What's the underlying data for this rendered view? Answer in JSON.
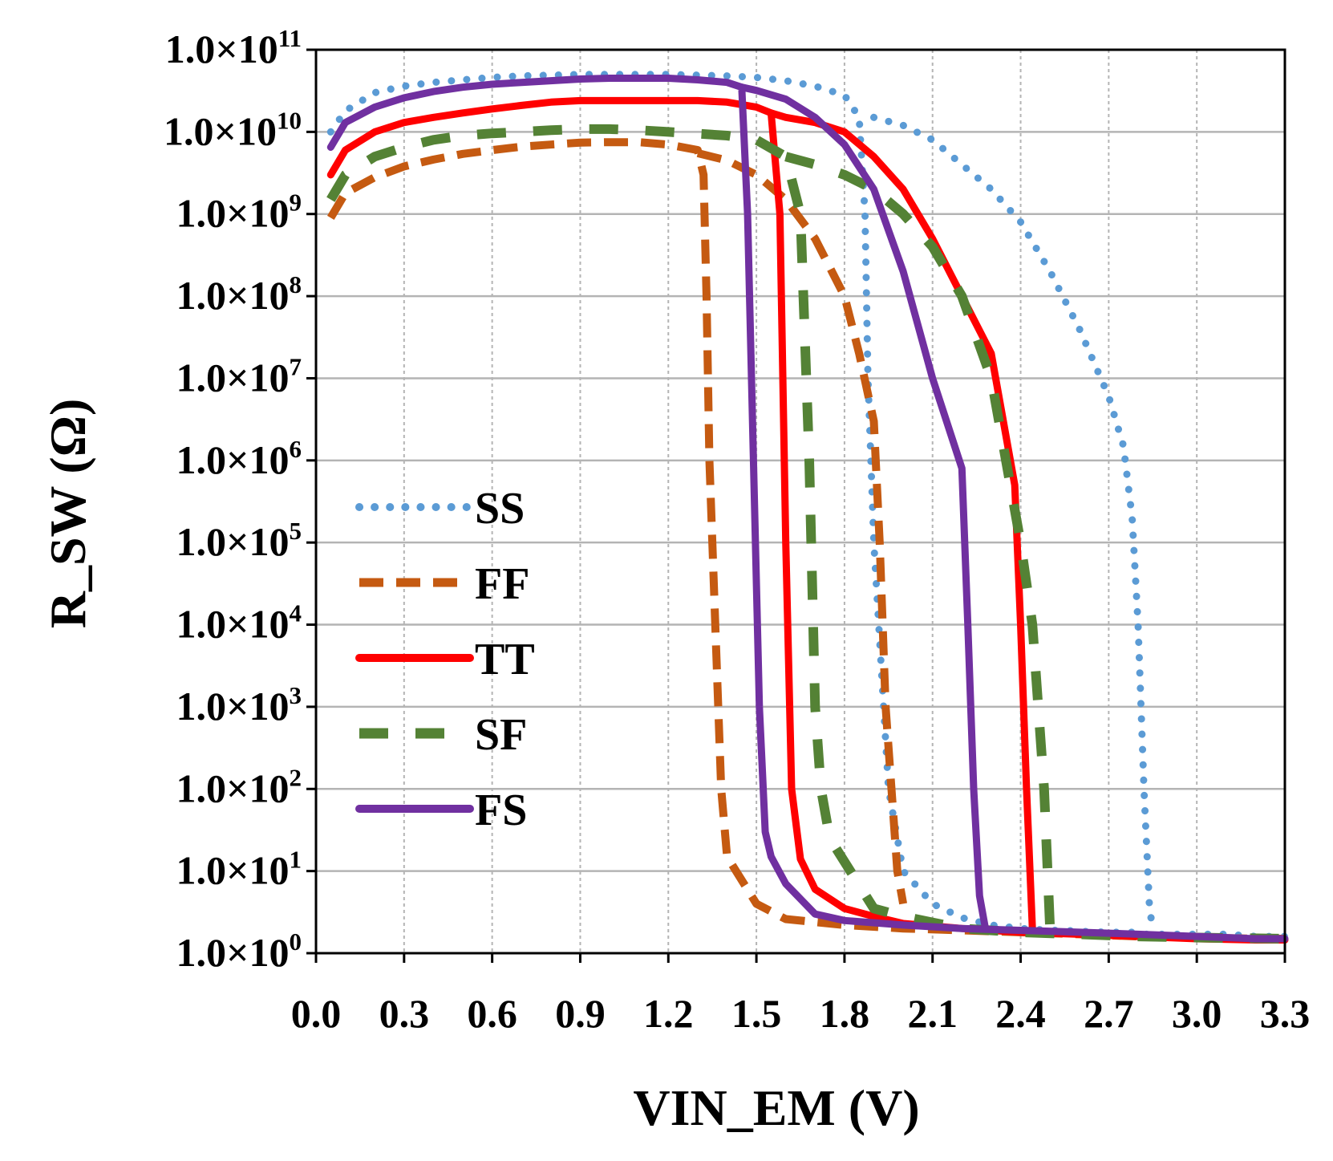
{
  "chart_data": {
    "type": "line",
    "title": "",
    "xlabel": "VIN_EM (V)",
    "ylabel": "R_SW (Ω)",
    "xlim": [
      0,
      3.3
    ],
    "ylim_log10": [
      0,
      11
    ],
    "yscale": "log",
    "x_ticks": [
      "0.0",
      "0.3",
      "0.6",
      "0.9",
      "1.2",
      "1.5",
      "1.8",
      "2.1",
      "2.4",
      "2.7",
      "3.0",
      "3.3"
    ],
    "x_tick_values": [
      0,
      0.3,
      0.6,
      0.9,
      1.2,
      1.5,
      1.8,
      2.1,
      2.4,
      2.7,
      3.0,
      3.3
    ],
    "y_ticks": [
      {
        "mant": "1.0×10",
        "exp": "0",
        "value": 1
      },
      {
        "mant": "1.0×10",
        "exp": "1",
        "value": 10
      },
      {
        "mant": "1.0×10",
        "exp": "2",
        "value": 100
      },
      {
        "mant": "1.0×10",
        "exp": "3",
        "value": 1000
      },
      {
        "mant": "1.0×10",
        "exp": "4",
        "value": 10000
      },
      {
        "mant": "1.0×10",
        "exp": "5",
        "value": 100000
      },
      {
        "mant": "1.0×10",
        "exp": "6",
        "value": 1000000
      },
      {
        "mant": "1.0×10",
        "exp": "7",
        "value": 10000000
      },
      {
        "mant": "1.0×10",
        "exp": "8",
        "value": 100000000
      },
      {
        "mant": "1.0×10",
        "exp": "9",
        "value": 1000000000
      },
      {
        "mant": "1.0×10",
        "exp": "10",
        "value": 10000000000
      },
      {
        "mant": "1.0×10",
        "exp": "11",
        "value": 100000000000
      }
    ],
    "grid": true,
    "legend_position": "left-middle",
    "series": [
      {
        "name": "SS",
        "color": "#5b9bd5",
        "style": "dotted",
        "x": [
          0.05,
          0.1,
          0.2,
          0.3,
          0.4,
          0.5,
          0.6,
          0.7,
          0.8,
          0.9,
          1.0,
          1.1,
          1.2,
          1.3,
          1.4,
          1.5,
          1.6,
          1.7,
          1.8,
          1.85,
          1.87,
          1.88,
          1.9,
          1.95,
          2.0,
          2.1,
          2.2,
          2.3,
          2.4,
          2.5,
          2.55,
          2.6,
          2.7,
          2.75,
          2.78,
          2.8,
          2.82,
          2.84,
          2.86,
          2.9,
          3.0,
          3.1,
          3.2,
          3.3
        ],
        "y": [
          10000000000.0,
          18000000000.0,
          30000000000.0,
          36000000000.0,
          40000000000.0,
          43000000000.0,
          46000000000.0,
          48000000000.0,
          49000000000.0,
          50000000000.0,
          50000000000.0,
          50000000000.0,
          50000000000.0,
          49000000000.0,
          48000000000.0,
          46000000000.0,
          42000000000.0,
          36000000000.0,
          28000000000.0,
          15000000000.0,
          1000000000.0,
          10000000.0,
          100000.0,
          100.0,
          10,
          4,
          2.7,
          2.2,
          2.0,
          1.9,
          1.9,
          1.85,
          1.8,
          1.8,
          1.8,
          1.7,
          1.7,
          1.7,
          1.7,
          1.7,
          1.7,
          1.7,
          1.6,
          1.6
        ],
        "x2": [
          1.9,
          2.0,
          2.1,
          2.2,
          2.3,
          2.4,
          2.5,
          2.6,
          2.7,
          2.75,
          2.78,
          2.8,
          2.82,
          2.84,
          2.86
        ],
        "y2": [
          15000000000.0,
          12000000000.0,
          8000000000.0,
          4000000000.0,
          2000000000.0,
          800000000.0,
          200000000.0,
          40000000.0,
          6000000.0,
          1500000.0,
          200000.0,
          10000.0,
          100.0,
          3,
          1.8
        ]
      },
      {
        "name": "FF",
        "color": "#c55a11",
        "style": "dashed",
        "x": [
          0.05,
          0.1,
          0.2,
          0.3,
          0.4,
          0.5,
          0.6,
          0.7,
          0.8,
          0.9,
          1.0,
          1.1,
          1.2,
          1.3,
          1.32,
          1.33,
          1.34,
          1.36,
          1.38,
          1.4,
          1.5,
          1.6,
          1.8,
          2.0,
          2.2,
          2.4,
          2.6,
          2.8,
          3.0,
          3.2,
          3.3
        ],
        "y": [
          900000000.0,
          1800000000.0,
          2800000000.0,
          3800000000.0,
          4600000000.0,
          5400000000.0,
          6000000000.0,
          6600000000.0,
          7000000000.0,
          7400000000.0,
          7500000000.0,
          7500000000.0,
          7000000000.0,
          6000000000.0,
          3000000000.0,
          100000000.0,
          1000000.0,
          10000.0,
          100.0,
          15,
          4,
          2.6,
          2.2,
          2.0,
          1.9,
          1.8,
          1.7,
          1.6,
          1.55,
          1.5,
          1.5
        ],
        "x2": [
          1.3,
          1.4,
          1.5,
          1.6,
          1.7,
          1.8,
          1.85,
          1.9,
          1.92,
          1.94,
          1.96,
          1.98,
          2.0
        ],
        "y2": [
          5500000000.0,
          4500000000.0,
          3000000000.0,
          1500000000.0,
          500000000.0,
          100000000.0,
          20000000.0,
          3000000.0,
          100000.0,
          1000.0,
          100.0,
          10,
          4
        ]
      },
      {
        "name": "TT",
        "color": "#ff0000",
        "style": "solid",
        "x": [
          0.05,
          0.1,
          0.2,
          0.3,
          0.4,
          0.5,
          0.6,
          0.7,
          0.8,
          0.9,
          1.0,
          1.1,
          1.2,
          1.3,
          1.4,
          1.5,
          1.55,
          1.58,
          1.6,
          1.62,
          1.65,
          1.7,
          1.8,
          1.9,
          2.0,
          2.2,
          2.4,
          2.6,
          2.8,
          3.0,
          3.2,
          3.3
        ],
        "y": [
          3000000000.0,
          6000000000.0,
          10000000000.0,
          13000000000.0,
          15000000000.0,
          17000000000.0,
          19000000000.0,
          21000000000.0,
          23000000000.0,
          24000000000.0,
          24000000000.0,
          24000000000.0,
          24000000000.0,
          24000000000.0,
          23000000000.0,
          20000000000.0,
          17000000000.0,
          1000000000.0,
          100000.0,
          100.0,
          14,
          6,
          3.5,
          2.8,
          2.3,
          2.0,
          1.8,
          1.7,
          1.6,
          1.5,
          1.45,
          1.45
        ],
        "x2": [
          1.55,
          1.6,
          1.7,
          1.8,
          1.9,
          2.0,
          2.1,
          2.2,
          2.3,
          2.38,
          2.4,
          2.42,
          2.44
        ],
        "y2": [
          17000000000.0,
          15000000000.0,
          13000000000.0,
          10000000000.0,
          5000000000.0,
          2000000000.0,
          500000000.0,
          100000000.0,
          20000000.0,
          500000.0,
          10000.0,
          100.0,
          2
        ]
      },
      {
        "name": "SF",
        "color": "#548235",
        "style": "longdash",
        "x": [
          0.05,
          0.1,
          0.2,
          0.3,
          0.4,
          0.5,
          0.6,
          0.7,
          0.8,
          0.9,
          1.0,
          1.1,
          1.2,
          1.3,
          1.4,
          1.5,
          1.6,
          1.65,
          1.68,
          1.7,
          1.72,
          1.75,
          1.9,
          2.0,
          2.2,
          2.4,
          2.6,
          2.8,
          3.0,
          3.3
        ],
        "y": [
          1500000000.0,
          3000000000.0,
          5000000000.0,
          6500000000.0,
          8000000000.0,
          9000000000.0,
          9600000000.0,
          10000000000.0,
          10500000000.0,
          10800000000.0,
          10800000000.0,
          10500000000.0,
          10000000000.0,
          9500000000.0,
          9000000000.0,
          8000000000.0,
          5000000000.0,
          1000000000.0,
          1000000.0,
          1000.0,
          100.0,
          25,
          3.5,
          2.8,
          2.0,
          1.8,
          1.7,
          1.6,
          1.55,
          1.5
        ],
        "x2": [
          1.6,
          1.7,
          1.8,
          1.9,
          2.0,
          2.1,
          2.2,
          2.3,
          2.35,
          2.4,
          2.44,
          2.46,
          2.48,
          2.5
        ],
        "y2": [
          5000000000.0,
          4000000000.0,
          3000000000.0,
          2000000000.0,
          1000000000.0,
          400000000.0,
          100000000.0,
          10000000.0,
          1000000.0,
          100000.0,
          10000.0,
          1000.0,
          100.0,
          2
        ]
      },
      {
        "name": "FS",
        "color": "#7030a0",
        "style": "solid",
        "x": [
          0.05,
          0.1,
          0.2,
          0.3,
          0.4,
          0.5,
          0.6,
          0.7,
          0.8,
          0.9,
          1.0,
          1.1,
          1.2,
          1.3,
          1.4,
          1.45,
          1.47,
          1.49,
          1.51,
          1.53,
          1.55,
          1.6,
          1.7,
          1.8,
          2.0,
          2.2,
          2.4,
          2.6,
          2.8,
          3.0,
          3.2,
          3.3
        ],
        "y": [
          6500000000.0,
          13000000000.0,
          20000000000.0,
          26000000000.0,
          31000000000.0,
          35000000000.0,
          38000000000.0,
          40000000000.0,
          42000000000.0,
          44000000000.0,
          45000000000.0,
          45000000000.0,
          45000000000.0,
          43000000000.0,
          40000000000.0,
          35000000000.0,
          1000000000.0,
          1000000.0,
          1000.0,
          30,
          15,
          7,
          3,
          2.5,
          2.2,
          2.0,
          1.9,
          1.8,
          1.7,
          1.6,
          1.5,
          1.5
        ],
        "x2": [
          1.45,
          1.5,
          1.6,
          1.7,
          1.8,
          1.9,
          2.0,
          2.1,
          2.2,
          2.22,
          2.24,
          2.26,
          2.28
        ],
        "y2": [
          35000000000.0,
          32000000000.0,
          25000000000.0,
          15000000000.0,
          7000000000.0,
          2000000000.0,
          200000000.0,
          10000000.0,
          800000.0,
          10000.0,
          100.0,
          5,
          2
        ]
      }
    ]
  }
}
